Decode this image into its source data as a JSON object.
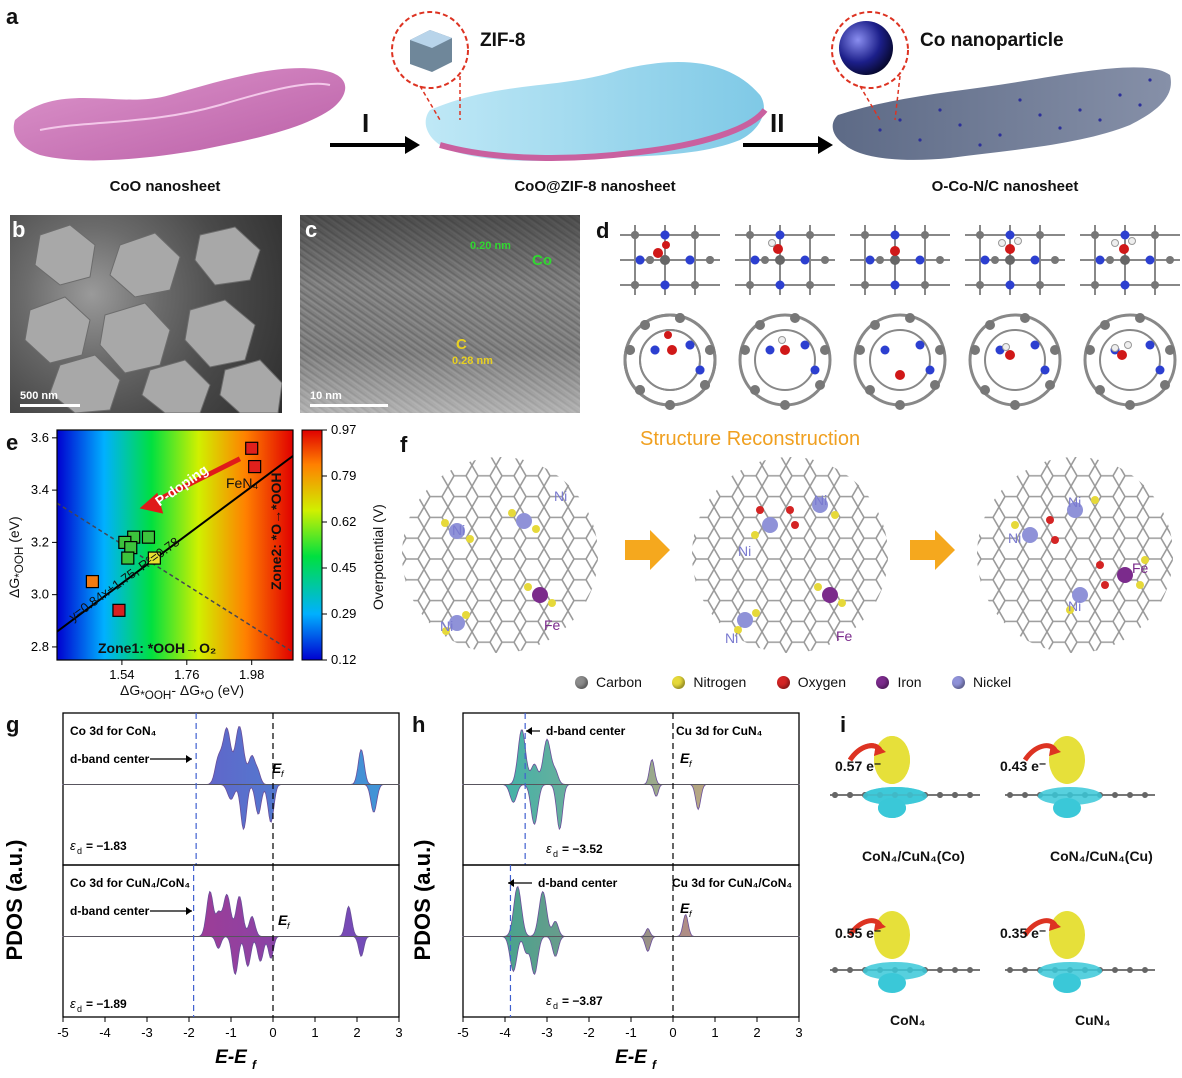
{
  "figure": {
    "panel_labels": {
      "a": "a",
      "b": "b",
      "c": "c",
      "d": "d",
      "e": "e",
      "f": "f",
      "g": "g",
      "h": "h",
      "i": "i"
    },
    "a": {
      "step1": "I",
      "step2": "II",
      "inset1_label": "ZIF-8",
      "inset2_label": "Co nanoparticle",
      "captions": [
        "CoO nanosheet",
        "CoO@ZIF-8 nanosheet",
        "O-Co-N/C nanosheet"
      ]
    },
    "b": {
      "scale": "500 nm"
    },
    "c": {
      "scale": "10 nm",
      "d1": "0.20 nm",
      "d1_label": "Co",
      "d2": "0.28 nm",
      "d2_label": "C"
    },
    "e": {
      "colorbar_label": "Overpotential (V)",
      "colorbar_ticks": [
        "0.97",
        "0.79",
        "0.62",
        "0.45",
        "0.29",
        "0.12"
      ],
      "arrow_label": "P-doping",
      "fit": "y=0.84x+1.75, R²=0.78",
      "point_label": "FeN₄",
      "zone1": "Zone1: *OOH→O₂",
      "zone2": "Zone2: *O→*OOH"
    },
    "f": {
      "title": "Structure Reconstruction",
      "atom_ni": "Ni",
      "atom_fe": "Fe",
      "legend": [
        {
          "label": "Carbon",
          "color": "#8c8c8c"
        },
        {
          "label": "Nitrogen",
          "color": "#e6d93a"
        },
        {
          "label": "Oxygen",
          "color": "#d42424"
        },
        {
          "label": "Iron",
          "color": "#7b2b8c"
        },
        {
          "label": "Nickel",
          "color": "#8f92d8"
        }
      ]
    },
    "g": {
      "ylabel": "PDOS (a.u.)",
      "xlabel": "E-E",
      "xlabel_sub": "f",
      "top_title": "Co 3d for CoN₄",
      "bottom_title": "Co 3d for CuN₄/CoN₄",
      "dband": "d-band center",
      "ef": "E",
      "ef_sub": "f",
      "top_ed": "= −1.83",
      "bottom_ed": "= −1.89",
      "ed_symbol": "ε",
      "ed_sub": "d"
    },
    "h": {
      "ylabel": "PDOS (a.u.)",
      "xlabel": "E-E",
      "xlabel_sub": "f",
      "top_title": "Cu 3d for CuN₄",
      "bottom_title": "Cu 3d for CuN₄/CoN₄",
      "dband": "d-band center",
      "ef": "E",
      "ef_sub": "f",
      "top_ed": "= −3.52",
      "bottom_ed": "= −3.87",
      "ed_symbol": "ε",
      "ed_sub": "d"
    },
    "i": {
      "charges": [
        "0.57 e⁻",
        "0.43 e⁻",
        "0.55 e⁻",
        "0.35 e⁻"
      ],
      "labels": [
        "CoN₄/CuN₄(Co)",
        "CoN₄/CuN₄(Cu)",
        "CoN₄",
        "CuN₄"
      ]
    }
  },
  "chart_data": [
    {
      "type": "scatter",
      "xlabel": "ΔG*OOH - ΔG*O (eV)",
      "ylabel": "ΔG*OOH (eV)",
      "xlim": [
        1.32,
        2.12
      ],
      "ylim": [
        2.75,
        3.63
      ],
      "xticks": [
        "1.54",
        "1.76",
        "1.98"
      ],
      "yticks": [
        "2.8",
        "3.0",
        "3.2",
        "3.4",
        "3.6"
      ],
      "fit_line": {
        "slope": 0.84,
        "intercept": 1.75
      },
      "points": [
        {
          "x": 1.98,
          "y": 3.56,
          "color": "#e0201c"
        },
        {
          "x": 1.99,
          "y": 3.49,
          "color": "#e0201c"
        },
        {
          "x": 1.58,
          "y": 3.22,
          "color": "#3cc43c"
        },
        {
          "x": 1.63,
          "y": 3.22,
          "color": "#3cc43c"
        },
        {
          "x": 1.55,
          "y": 3.2,
          "color": "#3cc43c"
        },
        {
          "x": 1.57,
          "y": 3.18,
          "color": "#3cc43c"
        },
        {
          "x": 1.56,
          "y": 3.14,
          "color": "#3cc43c"
        },
        {
          "x": 1.65,
          "y": 3.14,
          "color": "#e6e030"
        },
        {
          "x": 1.44,
          "y": 3.05,
          "color": "#f07a10"
        },
        {
          "x": 1.53,
          "y": 2.94,
          "color": "#d82020"
        }
      ]
    },
    {
      "type": "area",
      "title": "Co 3d PDOS",
      "xlim": [
        -5,
        3
      ],
      "xticks": [
        "-5",
        "-4",
        "-3",
        "-2",
        "-1",
        "0",
        "1",
        "2",
        "3"
      ],
      "dband_centers": [
        -1.83,
        -1.89
      ]
    },
    {
      "type": "area",
      "title": "Cu 3d PDOS",
      "xlim": [
        -5,
        3
      ],
      "xticks": [
        "-5",
        "-4",
        "-3",
        "-2",
        "-1",
        "0",
        "1",
        "2",
        "3"
      ],
      "dband_centers": [
        -3.52,
        -3.87
      ]
    }
  ]
}
